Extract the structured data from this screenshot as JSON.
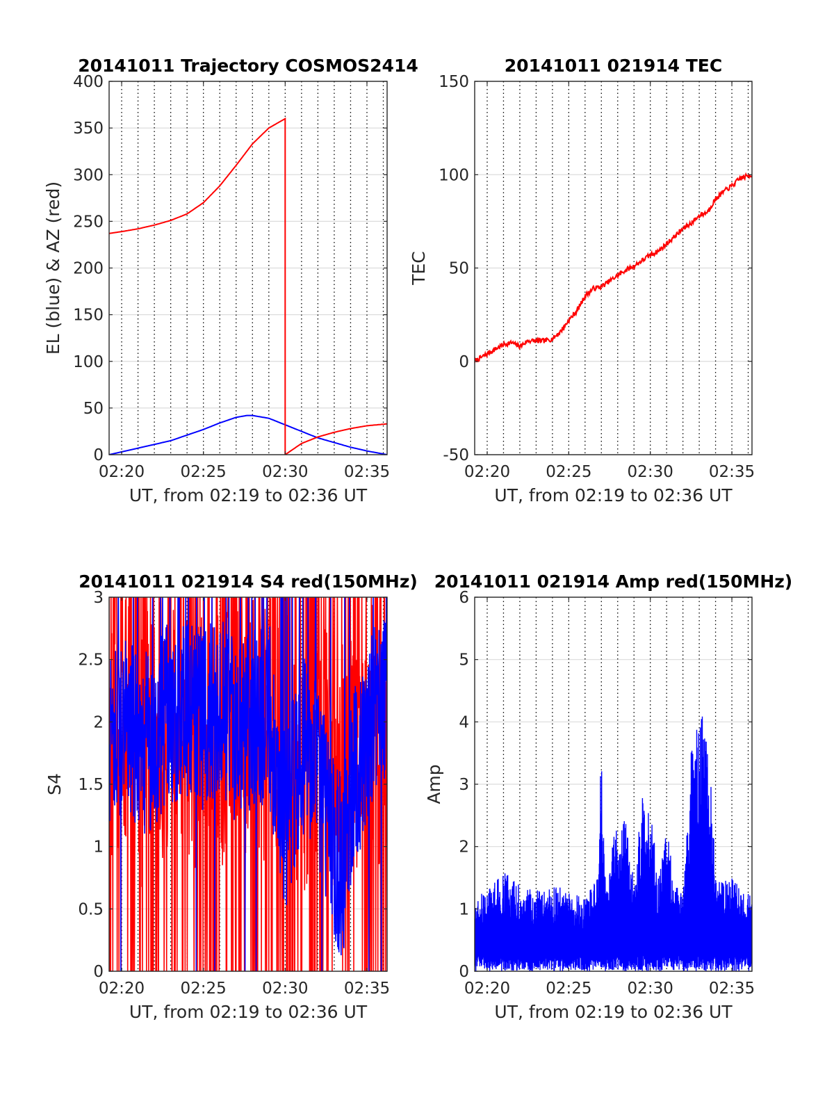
{
  "colors": {
    "el": "#0000ff",
    "az": "#ff0000",
    "tec": "#ff0000",
    "s4": "#ff0000",
    "amp": "#0000ff",
    "grid": "#262626"
  },
  "chart_data": [
    {
      "id": "trajectory",
      "type": "line",
      "title": "20141011 Trajectory COSMOS2414",
      "xlabel": "UT, from 02:19 to 02:36 UT",
      "ylabel": "EL (blue) & AZ (red)",
      "xlim": [
        "02:19:14",
        "02:36:14"
      ],
      "ylim": [
        0,
        400
      ],
      "xticks": [
        "02:20",
        "02:25",
        "02:30",
        "02:35"
      ],
      "yticks": [
        "0",
        "50",
        "100",
        "150",
        "200",
        "250",
        "300",
        "350",
        "400"
      ],
      "grid": "x-dotted-minute",
      "series": [
        {
          "color": "blue",
          "x": [
            "02:19:14",
            "02:20:00",
            "02:21:00",
            "02:22:00",
            "02:23:00",
            "02:24:00",
            "02:25:00",
            "02:26:00",
            "02:27:00",
            "02:27:40",
            "02:28:00",
            "02:29:00",
            "02:30:00",
            "02:31:00",
            "02:32:00",
            "02:33:00",
            "02:34:00",
            "02:35:00",
            "02:36:14"
          ],
          "y": [
            0,
            3,
            7,
            11,
            15,
            21,
            27,
            34,
            40,
            42,
            42,
            39,
            32,
            25,
            18,
            13,
            8,
            4,
            0
          ]
        },
        {
          "color": "red",
          "x": [
            "02:19:14",
            "02:20:00",
            "02:21:00",
            "02:22:00",
            "02:23:00",
            "02:24:00",
            "02:25:00",
            "02:26:00",
            "02:27:00",
            "02:28:00",
            "02:29:00",
            "02:30:00",
            "02:30:00",
            "02:31:00",
            "02:32:00",
            "02:33:00",
            "02:34:00",
            "02:35:00",
            "02:36:14"
          ],
          "y": [
            237,
            239,
            242,
            246,
            251,
            258,
            270,
            288,
            310,
            333,
            350,
            360,
            0,
            12,
            19,
            24,
            28,
            31,
            33
          ]
        }
      ]
    },
    {
      "id": "tec",
      "type": "line",
      "title": "20141011 021914 TEC",
      "xlabel": "UT, from 02:19 to 02:36 UT",
      "ylabel": "TEC",
      "xlim": [
        "02:19:14",
        "02:36:14"
      ],
      "ylim": [
        -50,
        150
      ],
      "xticks": [
        "02:20",
        "02:25",
        "02:30",
        "02:35"
      ],
      "yticks": [
        "-50",
        "0",
        "50",
        "100",
        "150"
      ],
      "grid": "x-dotted-minute",
      "series": [
        {
          "color": "red",
          "x": [
            "02:19:14",
            "02:20:00",
            "02:21:00",
            "02:21:30",
            "02:22:00",
            "02:22:30",
            "02:23:00",
            "02:23:30",
            "02:24:00",
            "02:24:30",
            "02:25:00",
            "02:25:30",
            "02:26:00",
            "02:26:30",
            "02:27:00",
            "02:27:30",
            "02:28:00",
            "02:28:30",
            "02:29:00",
            "02:29:30",
            "02:30:00",
            "02:30:30",
            "02:31:00",
            "02:31:30",
            "02:32:00",
            "02:32:30",
            "02:33:00",
            "02:33:30",
            "02:34:00",
            "02:34:30",
            "02:35:00",
            "02:35:30",
            "02:36:14"
          ],
          "y": [
            0,
            4,
            9,
            10,
            8,
            11,
            11,
            11,
            12,
            16,
            22,
            27,
            35,
            39,
            40,
            43,
            46,
            49,
            51,
            54,
            57,
            59,
            63,
            67,
            71,
            74,
            78,
            80,
            87,
            91,
            94,
            98,
            100
          ]
        }
      ]
    },
    {
      "id": "s4",
      "type": "line",
      "title": "20141011 021914 S4 red(150MHz)",
      "xlabel": "UT, from 02:19 to 02:36 UT",
      "ylabel": "S4",
      "xlim": [
        "02:19:14",
        "02:36:14"
      ],
      "ylim": [
        0,
        3
      ],
      "xticks": [
        "02:20",
        "02:25",
        "02:30",
        "02:35"
      ],
      "yticks": [
        "0",
        "0.5",
        "1",
        "1.5",
        "2",
        "2.5",
        "3"
      ],
      "grid": "x-dotted-minute",
      "series": [
        {
          "color": "red",
          "note_values": "noisy, spanning 0 to 3 throughout",
          "x": [
            "02:19:14",
            "02:20:00",
            "02:21:00",
            "02:22:00",
            "02:23:00",
            "02:24:00",
            "02:25:00",
            "02:26:00",
            "02:27:00",
            "02:28:00",
            "02:29:00",
            "02:30:00",
            "02:31:00",
            "02:32:00",
            "02:33:00",
            "02:34:00",
            "02:35:00",
            "02:36:14"
          ],
          "y": [
            1.8,
            2.0,
            1.7,
            1.9,
            2.1,
            2.0,
            1.8,
            1.9,
            2.2,
            1.9,
            2.0,
            1.8,
            1.7,
            1.9,
            1.5,
            1.8,
            2.0,
            1.5
          ]
        },
        {
          "color": "blue",
          "x": [
            "02:19:14",
            "02:20:00",
            "02:21:00",
            "02:22:00",
            "02:23:00",
            "02:24:00",
            "02:25:00",
            "02:26:00",
            "02:27:00",
            "02:28:00",
            "02:29:00",
            "02:30:00",
            "02:31:00",
            "02:32:00",
            "02:33:00",
            "02:33:30",
            "02:34:00",
            "02:35:00",
            "02:36:14"
          ],
          "y": [
            1.9,
            2.0,
            1.8,
            1.9,
            2.1,
            2.1,
            2.0,
            2.1,
            1.9,
            2.0,
            2.1,
            1.2,
            1.8,
            1.6,
            1.0,
            0.8,
            1.4,
            1.9,
            2.2
          ]
        }
      ]
    },
    {
      "id": "amp",
      "type": "line",
      "title": "20141011 021914 Amp red(150MHz)",
      "xlabel": "UT, from 02:19 to 02:36 UT",
      "ylabel": "Amp",
      "xlim": [
        "02:19:14",
        "02:36:14"
      ],
      "ylim": [
        0,
        6
      ],
      "xticks": [
        "02:20",
        "02:25",
        "02:30",
        "02:35"
      ],
      "yticks": [
        "0",
        "1",
        "2",
        "3",
        "4",
        "5",
        "6"
      ],
      "grid": "x-dotted-minute",
      "series": [
        {
          "color": "blue",
          "note_values": "dense noise from 0 up to the envelope",
          "x": [
            "02:19:14",
            "02:20:00",
            "02:21:00",
            "02:22:00",
            "02:23:00",
            "02:24:00",
            "02:25:00",
            "02:26:00",
            "02:26:45",
            "02:27:00",
            "02:27:15",
            "02:28:00",
            "02:28:30",
            "02:29:00",
            "02:29:30",
            "02:30:00",
            "02:30:30",
            "02:31:00",
            "02:31:30",
            "02:32:00",
            "02:32:30",
            "02:33:00",
            "02:33:20",
            "02:33:40",
            "02:34:00",
            "02:35:00",
            "02:36:14"
          ],
          "y": [
            1.2,
            1.3,
            1.6,
            1.4,
            1.3,
            1.4,
            1.3,
            1.2,
            1.5,
            3.6,
            1.4,
            2.5,
            2.6,
            1.4,
            2.8,
            2.7,
            1.5,
            2.3,
            1.4,
            1.3,
            3.6,
            4.0,
            4.2,
            3.4,
            1.5,
            1.5,
            1.2
          ]
        }
      ]
    }
  ]
}
